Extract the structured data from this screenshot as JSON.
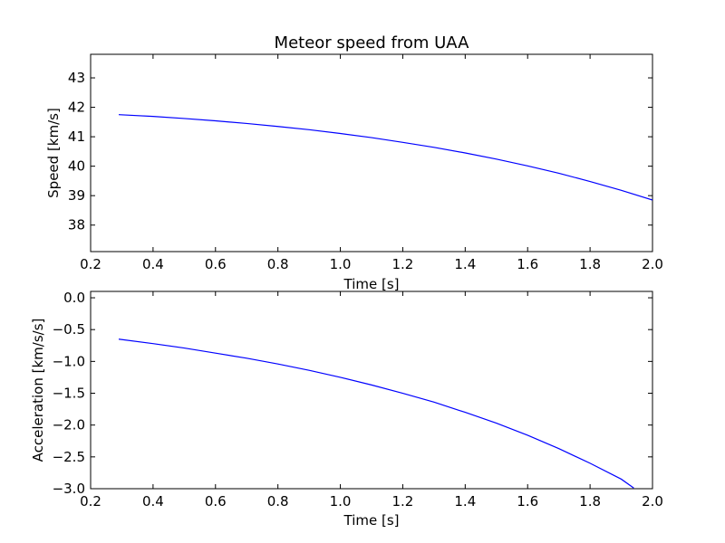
{
  "chart_data": [
    {
      "type": "line",
      "title": "Meteor speed from  UAA",
      "xlabel": "Time [s]",
      "ylabel": "Speed [km/s]",
      "xlim": [
        0.2,
        2.0
      ],
      "ylim": [
        37.1,
        43.8
      ],
      "xticks": [
        "0.2",
        "0.4",
        "0.6",
        "0.8",
        "1.0",
        "1.2",
        "1.4",
        "1.6",
        "1.8",
        "2.0"
      ],
      "yticks": [
        "38",
        "39",
        "40",
        "41",
        "42",
        "43"
      ],
      "grid": false,
      "series": [
        {
          "color": "#0000ff",
          "x": [
            0.29,
            0.4,
            0.5,
            0.6,
            0.7,
            0.8,
            0.9,
            1.0,
            1.1,
            1.2,
            1.3,
            1.4,
            1.5,
            1.6,
            1.7,
            1.8,
            1.9,
            2.0
          ],
          "y": [
            41.75,
            41.69,
            41.62,
            41.54,
            41.45,
            41.35,
            41.24,
            41.11,
            40.97,
            40.81,
            40.64,
            40.45,
            40.24,
            40.01,
            39.76,
            39.48,
            39.18,
            38.85
          ]
        }
      ]
    },
    {
      "type": "line",
      "title": "",
      "xlabel": "Time [s]",
      "ylabel": "Acceleration [km/s/s]",
      "xlim": [
        0.2,
        2.0
      ],
      "ylim": [
        -3.0,
        0.1
      ],
      "xticks": [
        "0.2",
        "0.4",
        "0.6",
        "0.8",
        "1.0",
        "1.2",
        "1.4",
        "1.6",
        "1.8",
        "2.0"
      ],
      "yticks": [
        "0.0",
        "−0.5",
        "−1.0",
        "−1.5",
        "−2.0",
        "−2.5",
        "−3.0"
      ],
      "grid": false,
      "series": [
        {
          "color": "#0000ff",
          "x": [
            0.29,
            0.4,
            0.5,
            0.6,
            0.7,
            0.8,
            0.9,
            1.0,
            1.1,
            1.2,
            1.3,
            1.4,
            1.5,
            1.6,
            1.7,
            1.8,
            1.9,
            1.94
          ],
          "y": [
            -0.65,
            -0.72,
            -0.79,
            -0.87,
            -0.95,
            -1.04,
            -1.14,
            -1.25,
            -1.37,
            -1.5,
            -1.64,
            -1.8,
            -1.97,
            -2.16,
            -2.37,
            -2.6,
            -2.85,
            -2.99
          ]
        }
      ]
    }
  ]
}
